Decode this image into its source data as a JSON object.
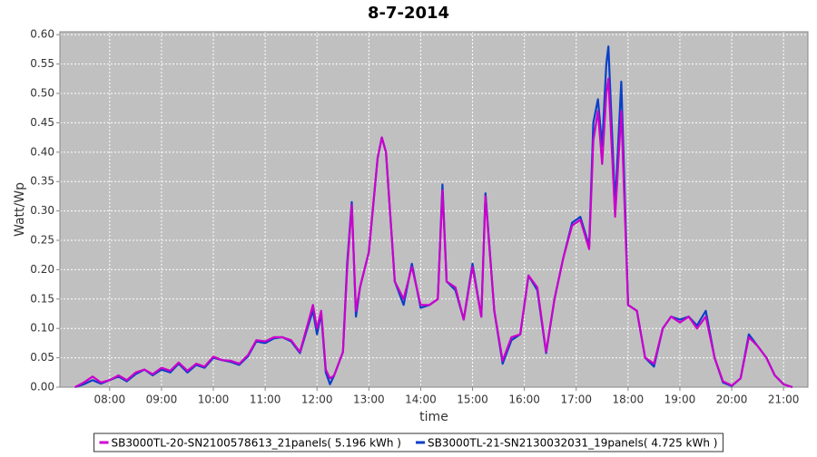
{
  "chart_data": {
    "type": "line",
    "title": "8-7-2014",
    "x_label": "time",
    "y_label": "Watt/Wp",
    "x": [
      7.33,
      7.5,
      7.67,
      7.83,
      8,
      8.17,
      8.33,
      8.5,
      8.67,
      8.83,
      9,
      9.17,
      9.33,
      9.5,
      9.67,
      9.83,
      10,
      10.17,
      10.33,
      10.5,
      10.67,
      10.83,
      11,
      11.17,
      11.33,
      11.5,
      11.67,
      11.83,
      11.92,
      12,
      12.08,
      12.17,
      12.25,
      12.33,
      12.5,
      12.58,
      12.67,
      12.75,
      12.83,
      13,
      13.17,
      13.25,
      13.33,
      13.5,
      13.67,
      13.83,
      14,
      14.17,
      14.33,
      14.42,
      14.5,
      14.67,
      14.83,
      15,
      15.17,
      15.25,
      15.42,
      15.58,
      15.75,
      15.92,
      16.08,
      16.25,
      16.42,
      16.58,
      16.75,
      16.92,
      17.08,
      17.25,
      17.33,
      17.42,
      17.5,
      17.58,
      17.62,
      17.75,
      17.87,
      18,
      18.17,
      18.33,
      18.5,
      18.67,
      18.83,
      19,
      19.17,
      19.33,
      19.5,
      19.67,
      19.83,
      20,
      20.17,
      20.33,
      20.5,
      20.67,
      20.83,
      21,
      21.17
    ],
    "series": [
      {
        "name": "SB3000TL-20-SN2100578613_21panels( 5.196 kWh )",
        "color": "#cc00cc",
        "values": [
          0,
          0.008,
          0.018,
          0.008,
          0.012,
          0.02,
          0.012,
          0.025,
          0.03,
          0.022,
          0.033,
          0.028,
          0.042,
          0.028,
          0.04,
          0.035,
          0.052,
          0.046,
          0.045,
          0.04,
          0.055,
          0.08,
          0.078,
          0.085,
          0.085,
          0.08,
          0.06,
          0.11,
          0.14,
          0.1,
          0.13,
          0.03,
          0.015,
          0.02,
          0.06,
          0.2,
          0.31,
          0.13,
          0.17,
          0.23,
          0.39,
          0.425,
          0.4,
          0.18,
          0.15,
          0.205,
          0.14,
          0.14,
          0.15,
          0.335,
          0.18,
          0.17,
          0.115,
          0.205,
          0.12,
          0.325,
          0.13,
          0.045,
          0.085,
          0.09,
          0.19,
          0.17,
          0.06,
          0.15,
          0.22,
          0.275,
          0.285,
          0.235,
          0.42,
          0.47,
          0.38,
          0.5,
          0.525,
          0.29,
          0.47,
          0.14,
          0.13,
          0.05,
          0.04,
          0.1,
          0.12,
          0.11,
          0.12,
          0.1,
          0.12,
          0.05,
          0.01,
          0.003,
          0.015,
          0.085,
          0.07,
          0.05,
          0.02,
          0.005,
          0
        ]
      },
      {
        "name": "SB3000TL-21-SN2130032031_19panels( 4.725 kWh )",
        "color": "#0a3fc8",
        "values": [
          0,
          0.005,
          0.012,
          0.006,
          0.012,
          0.018,
          0.01,
          0.022,
          0.03,
          0.02,
          0.03,
          0.025,
          0.04,
          0.025,
          0.038,
          0.033,
          0.05,
          0.046,
          0.043,
          0.038,
          0.053,
          0.078,
          0.075,
          0.083,
          0.085,
          0.078,
          0.058,
          0.105,
          0.13,
          0.09,
          0.125,
          0.025,
          0.005,
          0.02,
          0.06,
          0.21,
          0.315,
          0.12,
          0.17,
          0.23,
          0.39,
          0.425,
          0.4,
          0.18,
          0.14,
          0.21,
          0.135,
          0.14,
          0.15,
          0.345,
          0.18,
          0.165,
          0.115,
          0.21,
          0.12,
          0.33,
          0.13,
          0.04,
          0.08,
          0.09,
          0.19,
          0.165,
          0.058,
          0.15,
          0.22,
          0.28,
          0.29,
          0.24,
          0.45,
          0.49,
          0.41,
          0.55,
          0.58,
          0.31,
          0.52,
          0.14,
          0.13,
          0.05,
          0.035,
          0.1,
          0.12,
          0.115,
          0.12,
          0.105,
          0.13,
          0.05,
          0.008,
          0.002,
          0.015,
          0.09,
          0.07,
          0.05,
          0.02,
          0.005,
          0
        ]
      }
    ],
    "xlim": [
      7.04,
      21.47
    ],
    "ylim": [
      0,
      0.605
    ],
    "xticks": [
      {
        "value": 8,
        "label": "08:00"
      },
      {
        "value": 9,
        "label": "09:00"
      },
      {
        "value": 10,
        "label": "10:00"
      },
      {
        "value": 11,
        "label": "11:00"
      },
      {
        "value": 12,
        "label": "12:00"
      },
      {
        "value": 13,
        "label": "13:00"
      },
      {
        "value": 14,
        "label": "14:00"
      },
      {
        "value": 15,
        "label": "15:00"
      },
      {
        "value": 16,
        "label": "16:00"
      },
      {
        "value": 17,
        "label": "17:00"
      },
      {
        "value": 18,
        "label": "18:00"
      },
      {
        "value": 19,
        "label": "19:00"
      },
      {
        "value": 20,
        "label": "20:00"
      },
      {
        "value": 21,
        "label": "21:00"
      }
    ],
    "yticks": [
      {
        "value": 0,
        "label": "0.00"
      },
      0.05,
      {
        "value": 0.1,
        "label": "0.10"
      },
      0.15,
      {
        "value": 0.2,
        "label": "0.20"
      },
      0.25,
      {
        "value": 0.3,
        "label": "0.30"
      },
      0.35,
      {
        "value": 0.4,
        "label": "0.40"
      },
      0.45,
      {
        "value": 0.5,
        "label": "0.50"
      },
      0.55,
      {
        "value": 0.6,
        "label": "0.60"
      }
    ],
    "grid": true,
    "legend_position": "bottom"
  }
}
